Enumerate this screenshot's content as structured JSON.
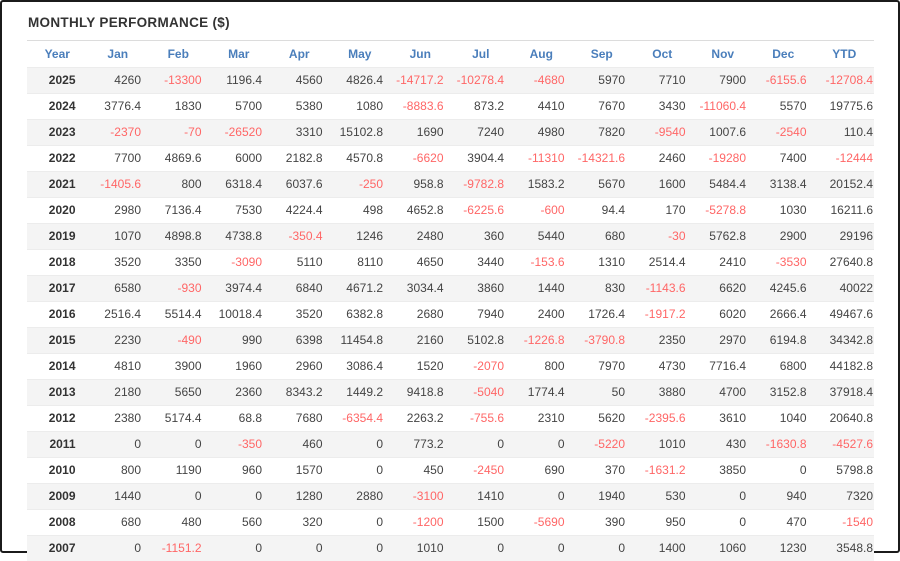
{
  "page": {
    "title": "MONTHLY PERFORMANCE ($)"
  },
  "colors": {
    "header_text": "#4a7ebb",
    "negative_value": "#ff6666",
    "positive_value": "#444444",
    "year_text": "#333333",
    "row_stripe": "#f4f4f4",
    "frame_border": "#1b1b1b",
    "title_rule": "#dcdcdc"
  },
  "chart_data": {
    "type": "table",
    "title": "MONTHLY PERFORMANCE ($)",
    "columns": [
      "Year",
      "Jan",
      "Feb",
      "Mar",
      "Apr",
      "May",
      "Jun",
      "Jul",
      "Aug",
      "Sep",
      "Oct",
      "Nov",
      "Dec",
      "YTD"
    ],
    "rows": [
      {
        "year": 2025,
        "values": [
          4260,
          -13300,
          1196.4,
          4560,
          4826.4,
          -14717.2,
          -10278.4,
          -4680,
          5970,
          7710,
          7900,
          -6155.6,
          -12708.4
        ]
      },
      {
        "year": 2024,
        "values": [
          3776.4,
          1830,
          5700,
          5380,
          1080,
          -8883.6,
          873.2,
          4410,
          7670,
          3430,
          -11060.4,
          5570,
          19775.6
        ]
      },
      {
        "year": 2023,
        "values": [
          -2370,
          -70,
          -26520,
          3310,
          15102.8,
          1690,
          7240,
          4980,
          7820,
          -9540,
          1007.6,
          -2540,
          110.4
        ]
      },
      {
        "year": 2022,
        "values": [
          7700,
          4869.6,
          6000,
          2182.8,
          4570.8,
          -6620,
          3904.4,
          -11310,
          -14321.6,
          2460,
          -19280,
          7400,
          -12444
        ]
      },
      {
        "year": 2021,
        "values": [
          -1405.6,
          800,
          6318.4,
          6037.6,
          -250,
          958.8,
          -9782.8,
          1583.2,
          5670,
          1600,
          5484.4,
          3138.4,
          20152.4
        ]
      },
      {
        "year": 2020,
        "values": [
          2980,
          7136.4,
          7530,
          4224.4,
          498,
          4652.8,
          -6225.6,
          -600,
          94.4,
          170,
          -5278.8,
          1030,
          16211.6
        ]
      },
      {
        "year": 2019,
        "values": [
          1070,
          4898.8,
          4738.8,
          -350.4,
          1246,
          2480,
          360,
          5440,
          680,
          -30,
          5762.8,
          2900,
          29196
        ]
      },
      {
        "year": 2018,
        "values": [
          3520,
          3350,
          -3090,
          5110,
          8110,
          4650,
          3440,
          -153.6,
          1310,
          2514.4,
          2410,
          -3530,
          27640.8
        ]
      },
      {
        "year": 2017,
        "values": [
          6580,
          -930,
          3974.4,
          6840,
          4671.2,
          3034.4,
          3860,
          1440,
          830,
          -1143.6,
          6620,
          4245.6,
          40022
        ]
      },
      {
        "year": 2016,
        "values": [
          2516.4,
          5514.4,
          10018.4,
          3520,
          6382.8,
          2680,
          7940,
          2400,
          1726.4,
          -1917.2,
          6020,
          2666.4,
          49467.6
        ]
      },
      {
        "year": 2015,
        "values": [
          2230,
          -490,
          990,
          6398,
          11454.8,
          2160,
          5102.8,
          -1226.8,
          -3790.8,
          2350,
          2970,
          6194.8,
          34342.8
        ]
      },
      {
        "year": 2014,
        "values": [
          4810,
          3900,
          1960,
          2960,
          3086.4,
          1520,
          -2070,
          800,
          7970,
          4730,
          7716.4,
          6800,
          44182.8
        ]
      },
      {
        "year": 2013,
        "values": [
          2180,
          5650,
          2360,
          8343.2,
          1449.2,
          9418.8,
          -5040,
          1774.4,
          50,
          3880,
          4700,
          3152.8,
          37918.4
        ]
      },
      {
        "year": 2012,
        "values": [
          2380,
          5174.4,
          68.8,
          7680,
          -6354.4,
          2263.2,
          -755.6,
          2310,
          5620,
          -2395.6,
          3610,
          1040,
          20640.8
        ]
      },
      {
        "year": 2011,
        "values": [
          0,
          0,
          -350,
          460,
          0,
          773.2,
          0,
          0,
          -5220,
          1010,
          430,
          -1630.8,
          -4527.6
        ]
      },
      {
        "year": 2010,
        "values": [
          800,
          1190,
          960,
          1570,
          0,
          450,
          -2450,
          690,
          370,
          -1631.2,
          3850,
          0,
          5798.8
        ]
      },
      {
        "year": 2009,
        "values": [
          1440,
          0,
          0,
          1280,
          2880,
          -3100,
          1410,
          0,
          1940,
          530,
          0,
          940,
          7320
        ]
      },
      {
        "year": 2008,
        "values": [
          680,
          480,
          560,
          320,
          0,
          -1200,
          1500,
          -5690,
          390,
          950,
          0,
          470,
          -1540
        ]
      },
      {
        "year": 2007,
        "values": [
          0,
          -1151.2,
          0,
          0,
          0,
          1010,
          0,
          0,
          0,
          1400,
          1060,
          1230,
          3548.8
        ]
      }
    ]
  }
}
